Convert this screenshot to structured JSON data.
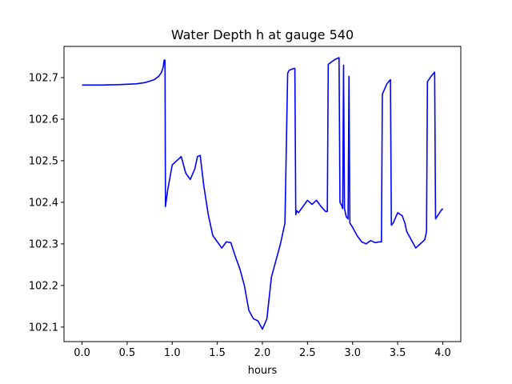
{
  "chart_data": {
    "type": "line",
    "title": "Water Depth h at gauge 540",
    "xlabel": "hours",
    "ylabel": "",
    "xlim": [
      -0.2,
      4.2
    ],
    "ylim": [
      102.065,
      102.775
    ],
    "grid": false,
    "xticks": [
      0.0,
      0.5,
      1.0,
      1.5,
      2.0,
      2.5,
      3.0,
      3.5,
      4.0
    ],
    "xtick_labels": [
      "0.0",
      "0.5",
      "1.0",
      "1.5",
      "2.0",
      "2.5",
      "3.0",
      "3.5",
      "4.0"
    ],
    "yticks": [
      102.1,
      102.2,
      102.3,
      102.4,
      102.5,
      102.6,
      102.7
    ],
    "ytick_labels": [
      "102.1",
      "102.2",
      "102.3",
      "102.4",
      "102.5",
      "102.6",
      "102.7"
    ],
    "series": [
      {
        "color": "#0000ff",
        "x": [
          0.0,
          0.2,
          0.4,
          0.6,
          0.7,
          0.8,
          0.85,
          0.88,
          0.9,
          0.91,
          0.92,
          0.925,
          0.95,
          1.0,
          1.05,
          1.1,
          1.15,
          1.2,
          1.25,
          1.28,
          1.31,
          1.35,
          1.4,
          1.45,
          1.5,
          1.55,
          1.6,
          1.65,
          1.7,
          1.75,
          1.8,
          1.85,
          1.9,
          1.95,
          2.0,
          2.05,
          2.1,
          2.15,
          2.2,
          2.25,
          2.28,
          2.29,
          2.3,
          2.35,
          2.36,
          2.37,
          2.38,
          2.4,
          2.45,
          2.5,
          2.55,
          2.6,
          2.65,
          2.7,
          2.72,
          2.73,
          2.75,
          2.8,
          2.85,
          2.86,
          2.88,
          2.89,
          2.9,
          2.91,
          2.93,
          2.95,
          2.96,
          2.97,
          3.0,
          3.05,
          3.1,
          3.15,
          3.2,
          3.25,
          3.3,
          3.32,
          3.33,
          3.38,
          3.42,
          3.43,
          3.45,
          3.5,
          3.55,
          3.58,
          3.6,
          3.65,
          3.7,
          3.75,
          3.8,
          3.82,
          3.83,
          3.87,
          3.91,
          3.92,
          3.95,
          3.98,
          4.0
        ],
        "y": [
          102.682,
          102.682,
          102.683,
          102.685,
          102.688,
          102.695,
          102.703,
          102.712,
          102.725,
          102.742,
          102.742,
          102.39,
          102.43,
          102.49,
          102.5,
          102.51,
          102.47,
          102.455,
          102.48,
          102.51,
          102.513,
          102.44,
          102.37,
          102.32,
          102.305,
          102.29,
          102.305,
          102.303,
          102.27,
          102.24,
          102.2,
          102.14,
          102.12,
          102.115,
          102.095,
          102.12,
          102.22,
          102.26,
          102.3,
          102.35,
          102.71,
          102.715,
          102.718,
          102.722,
          102.722,
          102.37,
          102.38,
          102.375,
          102.39,
          102.405,
          102.395,
          102.405,
          102.39,
          102.378,
          102.378,
          102.732,
          102.735,
          102.743,
          102.748,
          102.4,
          102.392,
          102.385,
          102.73,
          102.385,
          102.365,
          102.36,
          102.703,
          102.35,
          102.34,
          102.32,
          102.305,
          102.3,
          102.308,
          102.303,
          102.305,
          102.305,
          102.66,
          102.685,
          102.695,
          102.345,
          102.35,
          102.375,
          102.368,
          102.35,
          102.33,
          102.31,
          102.29,
          102.3,
          102.31,
          102.33,
          102.69,
          102.703,
          102.713,
          102.36,
          102.37,
          102.38,
          102.385
        ]
      }
    ]
  }
}
